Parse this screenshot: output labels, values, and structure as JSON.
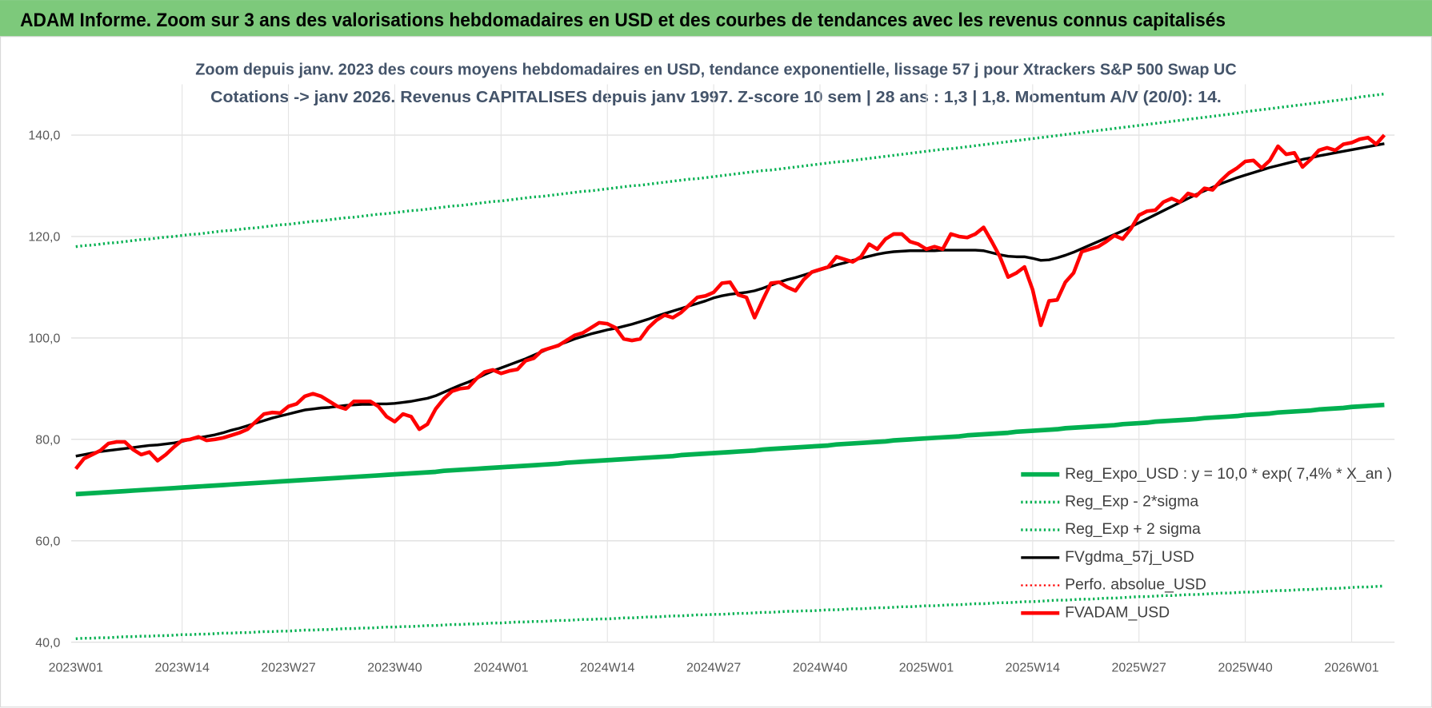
{
  "header": {
    "title": "ADAM Informe. Zoom sur 3 ans des valorisations hebdomadaires en USD et des courbes de tendances avec les revenus connus capitalisés"
  },
  "chart_data": {
    "type": "line",
    "title": "Zoom depuis janv. 2023 des cours moyens hebdomadaires en USD, tendance exponentielle, lissage 57 j pour Xtrackers S&P 500 Swap UC",
    "subtitle": "Cotations -> janv 2026. Revenus CAPITALISES depuis janv 1997. Z-score 10 sem | 28 ans : 1,3 | 1,8. Momentum A/V (20/0): 14.",
    "categories": [
      "2023W01",
      null,
      null,
      null,
      null,
      null,
      null,
      null,
      null,
      null,
      null,
      null,
      null,
      "2023W14",
      null,
      null,
      null,
      null,
      null,
      null,
      null,
      null,
      null,
      null,
      null,
      null,
      "2023W27",
      null,
      null,
      null,
      null,
      null,
      null,
      null,
      null,
      null,
      null,
      null,
      null,
      "2023W40",
      null,
      null,
      null,
      null,
      null,
      null,
      null,
      null,
      null,
      null,
      null,
      null,
      "2024W01",
      null,
      null,
      null,
      null,
      null,
      null,
      null,
      null,
      null,
      null,
      null,
      null,
      "2024W14",
      null,
      null,
      null,
      null,
      null,
      null,
      null,
      null,
      null,
      null,
      null,
      null,
      "2024W27",
      null,
      null,
      null,
      null,
      null,
      null,
      null,
      null,
      null,
      null,
      null,
      null,
      "2024W40",
      null,
      null,
      null,
      null,
      null,
      null,
      null,
      null,
      null,
      null,
      null,
      null,
      "2025W01",
      null,
      null,
      null,
      null,
      null,
      null,
      null,
      null,
      null,
      null,
      null,
      null,
      "2025W14",
      null,
      null,
      null,
      null,
      null,
      null,
      null,
      null,
      null,
      null,
      null,
      null,
      "2025W27",
      null,
      null,
      null,
      null,
      null,
      null,
      null,
      null,
      null,
      null,
      null,
      null,
      "2025W40",
      null,
      null,
      null,
      null,
      null,
      null,
      null,
      null,
      null,
      null,
      null,
      null,
      "2026W01",
      null,
      null,
      null,
      null
    ],
    "ylim": [
      40,
      150
    ],
    "yticks": [
      {
        "value": 40,
        "label": "40,0"
      },
      {
        "value": 60,
        "label": "60,0"
      },
      {
        "value": 80,
        "label": "80,0"
      },
      {
        "value": 100,
        "label": "100,0"
      },
      {
        "value": 120,
        "label": "120,0"
      },
      {
        "value": 140,
        "label": "140,0"
      }
    ],
    "grid": true,
    "legend": "lower right",
    "series": [
      {
        "name": "Reg_Expo_USD : y = 10,0 * exp( 7,4% *  X_an )",
        "color": "#00b050",
        "line_style": "solid",
        "line_width": 5,
        "values": [
          69.2,
          69.3,
          69.4,
          69.5,
          69.6,
          69.7,
          69.8,
          69.9,
          70.0,
          70.1,
          70.2,
          70.3,
          70.4,
          70.5,
          70.6,
          70.7,
          70.8,
          70.9,
          71.0,
          71.1,
          71.2,
          71.3,
          71.4,
          71.5,
          71.6,
          71.7,
          71.8,
          71.9,
          72.0,
          72.1,
          72.2,
          72.3,
          72.4,
          72.5,
          72.6,
          72.7,
          72.8,
          72.9,
          73.0,
          73.1,
          73.2,
          73.3,
          73.4,
          73.5,
          73.6,
          73.8,
          73.9,
          74.0,
          74.1,
          74.2,
          74.3,
          74.4,
          74.5,
          74.6,
          74.7,
          74.8,
          74.9,
          75.0,
          75.1,
          75.2,
          75.4,
          75.5,
          75.6,
          75.7,
          75.8,
          75.9,
          76.0,
          76.1,
          76.2,
          76.3,
          76.4,
          76.5,
          76.6,
          76.7,
          76.9,
          77.0,
          77.1,
          77.2,
          77.3,
          77.4,
          77.5,
          77.6,
          77.7,
          77.8,
          78.0,
          78.1,
          78.2,
          78.3,
          78.4,
          78.5,
          78.6,
          78.7,
          78.8,
          79.0,
          79.1,
          79.2,
          79.3,
          79.4,
          79.5,
          79.6,
          79.8,
          79.9,
          80.0,
          80.1,
          80.2,
          80.3,
          80.4,
          80.5,
          80.6,
          80.8,
          80.9,
          81.0,
          81.1,
          81.2,
          81.3,
          81.5,
          81.6,
          81.7,
          81.8,
          81.9,
          82.0,
          82.2,
          82.3,
          82.4,
          82.5,
          82.6,
          82.7,
          82.8,
          83.0,
          83.1,
          83.2,
          83.3,
          83.5,
          83.6,
          83.7,
          83.8,
          83.9,
          84.0,
          84.2,
          84.3,
          84.4,
          84.5,
          84.6,
          84.8,
          84.9,
          85.0,
          85.1,
          85.3,
          85.4,
          85.5,
          85.6,
          85.7,
          85.9,
          86.0,
          86.1,
          86.2,
          86.4,
          86.5,
          86.6,
          86.7,
          86.8
        ]
      },
      {
        "name": "Reg_Exp - 2*sigma",
        "color": "#00b050",
        "line_style": "dotted",
        "line_width": 3,
        "values": [
          40.7,
          40.8,
          40.8,
          40.9,
          40.9,
          41.0,
          41.1,
          41.1,
          41.2,
          41.2,
          41.3,
          41.3,
          41.4,
          41.5,
          41.5,
          41.6,
          41.6,
          41.7,
          41.8,
          41.8,
          41.9,
          41.9,
          42.0,
          42.1,
          42.1,
          42.2,
          42.2,
          42.3,
          42.4,
          42.4,
          42.5,
          42.5,
          42.6,
          42.7,
          42.7,
          42.8,
          42.8,
          42.9,
          43.0,
          43.0,
          43.1,
          43.1,
          43.2,
          43.3,
          43.3,
          43.4,
          43.5,
          43.5,
          43.6,
          43.6,
          43.7,
          43.8,
          43.8,
          43.9,
          44.0,
          44.0,
          44.1,
          44.1,
          44.2,
          44.3,
          44.3,
          44.4,
          44.5,
          44.5,
          44.6,
          44.6,
          44.7,
          44.8,
          44.8,
          44.9,
          45.0,
          45.0,
          45.1,
          45.2,
          45.2,
          45.3,
          45.4,
          45.4,
          45.5,
          45.5,
          45.6,
          45.7,
          45.7,
          45.8,
          45.9,
          45.9,
          46.0,
          46.1,
          46.1,
          46.2,
          46.2,
          46.3,
          46.4,
          46.4,
          46.5,
          46.6,
          46.6,
          46.7,
          46.8,
          46.8,
          46.9,
          47.0,
          47.0,
          47.1,
          47.2,
          47.2,
          47.3,
          47.4,
          47.4,
          47.5,
          47.6,
          47.6,
          47.7,
          47.8,
          47.8,
          47.9,
          48.0,
          48.0,
          48.1,
          48.2,
          48.3,
          48.3,
          48.4,
          48.5,
          48.5,
          48.6,
          48.7,
          48.7,
          48.8,
          48.9,
          49.0,
          49.0,
          49.1,
          49.2,
          49.2,
          49.3,
          49.4,
          49.4,
          49.5,
          49.6,
          49.7,
          49.7,
          49.8,
          49.9,
          49.9,
          50.0,
          50.1,
          50.2,
          50.2,
          50.3,
          50.4,
          50.4,
          50.5,
          50.6,
          50.6,
          50.7,
          50.8,
          50.9,
          50.9,
          51.0,
          51.1
        ]
      },
      {
        "name": "Reg_Exp + 2 sigma",
        "color": "#00b050",
        "line_style": "dotted",
        "line_width": 3,
        "values": [
          118.0,
          118.2,
          118.3,
          118.5,
          118.7,
          118.8,
          119.0,
          119.2,
          119.4,
          119.5,
          119.7,
          119.9,
          120.0,
          120.2,
          120.4,
          120.5,
          120.7,
          120.9,
          121.1,
          121.2,
          121.4,
          121.6,
          121.7,
          121.9,
          122.1,
          122.3,
          122.4,
          122.6,
          122.8,
          123.0,
          123.1,
          123.3,
          123.5,
          123.7,
          123.8,
          124.0,
          124.2,
          124.4,
          124.5,
          124.7,
          124.9,
          125.1,
          125.2,
          125.4,
          125.6,
          125.8,
          126.0,
          126.1,
          126.3,
          126.5,
          126.7,
          126.9,
          127.0,
          127.2,
          127.4,
          127.6,
          127.8,
          127.9,
          128.1,
          128.3,
          128.5,
          128.7,
          128.9,
          129.0,
          129.2,
          129.4,
          129.6,
          129.8,
          130.0,
          130.1,
          130.3,
          130.5,
          130.7,
          130.9,
          131.1,
          131.3,
          131.4,
          131.6,
          131.8,
          132.0,
          132.2,
          132.4,
          132.6,
          132.8,
          133.0,
          133.1,
          133.3,
          133.5,
          133.7,
          133.9,
          134.1,
          134.3,
          134.5,
          134.7,
          134.8,
          135.0,
          135.2,
          135.4,
          135.6,
          135.8,
          136.0,
          136.2,
          136.4,
          136.6,
          136.8,
          137.0,
          137.2,
          137.3,
          137.5,
          137.7,
          137.9,
          138.1,
          138.3,
          138.5,
          138.7,
          138.9,
          139.1,
          139.3,
          139.5,
          139.7,
          139.9,
          140.1,
          140.3,
          140.5,
          140.7,
          140.9,
          141.1,
          141.3,
          141.5,
          141.7,
          141.9,
          142.1,
          142.3,
          142.5,
          142.7,
          142.9,
          143.1,
          143.3,
          143.5,
          143.7,
          143.9,
          144.1,
          144.3,
          144.6,
          144.8,
          145.0,
          145.2,
          145.4,
          145.6,
          145.8,
          146.0,
          146.2,
          146.4,
          146.6,
          146.8,
          147.0,
          147.2,
          147.5,
          147.7,
          147.9,
          148.1
        ]
      },
      {
        "name": "FVgdma_57j_USD",
        "color": "#000000",
        "line_style": "solid",
        "line_width": 3,
        "values": [
          76.7,
          77.0,
          77.3,
          77.6,
          77.8,
          78.0,
          78.2,
          78.4,
          78.6,
          78.8,
          78.9,
          79.1,
          79.3,
          79.6,
          80.0,
          80.3,
          80.6,
          80.9,
          81.3,
          81.8,
          82.2,
          82.7,
          83.2,
          83.7,
          84.2,
          84.6,
          85.0,
          85.4,
          85.8,
          86.0,
          86.2,
          86.3,
          86.5,
          86.7,
          86.8,
          86.9,
          86.9,
          87.0,
          87.0,
          87.1,
          87.3,
          87.5,
          87.8,
          88.1,
          88.6,
          89.3,
          90.0,
          90.7,
          91.3,
          92.0,
          92.8,
          93.5,
          94.1,
          94.7,
          95.3,
          95.9,
          96.6,
          97.3,
          98.0,
          98.6,
          99.2,
          99.8,
          100.3,
          100.8,
          101.2,
          101.6,
          101.9,
          102.3,
          102.7,
          103.2,
          103.7,
          104.3,
          104.8,
          105.3,
          105.8,
          106.3,
          106.8,
          107.3,
          107.9,
          108.3,
          108.6,
          108.8,
          109.0,
          109.3,
          109.8,
          110.4,
          111.0,
          111.5,
          111.9,
          112.4,
          112.9,
          113.4,
          113.9,
          114.4,
          114.8,
          115.3,
          115.7,
          116.1,
          116.5,
          116.8,
          117.0,
          117.1,
          117.2,
          117.2,
          117.2,
          117.2,
          117.3,
          117.3,
          117.3,
          117.3,
          117.3,
          117.2,
          116.8,
          116.4,
          116.1,
          116.0,
          116.0,
          115.7,
          115.3,
          115.4,
          115.8,
          116.3,
          116.9,
          117.6,
          118.3,
          119.0,
          119.7,
          120.4,
          121.1,
          121.9,
          122.7,
          123.5,
          124.3,
          125.1,
          125.9,
          126.7,
          127.5,
          128.3,
          129.0,
          129.7,
          130.4,
          131.0,
          131.6,
          132.1,
          132.6,
          133.1,
          133.6,
          134.0,
          134.4,
          134.8,
          135.2,
          135.5,
          135.9,
          136.2,
          136.5,
          136.8,
          137.1,
          137.4,
          137.7,
          138.0,
          138.3
        ]
      },
      {
        "name": "Perfo. absolue_USD",
        "color": "#ff0000",
        "line_style": "dotted",
        "line_width": 2,
        "values": [
          null,
          null,
          null,
          null,
          null,
          null,
          null,
          null,
          null,
          null,
          null,
          null,
          null,
          null,
          null,
          null,
          null,
          null,
          null,
          null,
          null,
          null,
          null,
          null,
          null,
          null,
          null,
          null,
          null,
          null,
          null,
          null,
          null,
          null,
          null,
          null,
          null,
          null,
          null,
          null,
          null,
          null,
          null,
          null,
          null,
          null,
          null,
          null,
          null,
          null,
          null,
          null,
          null,
          null,
          null,
          null,
          null,
          null,
          null,
          null,
          null,
          null,
          null,
          null,
          null,
          null,
          null,
          null,
          null,
          null,
          null,
          null,
          null,
          null,
          null,
          null,
          null,
          null,
          null,
          null,
          null,
          null,
          null,
          null,
          null,
          null,
          null,
          null,
          null,
          null,
          null,
          null,
          null,
          null,
          null,
          null,
          null,
          null,
          null,
          null,
          null,
          null,
          null,
          null,
          null,
          null,
          null,
          null,
          null,
          null,
          null,
          null,
          null,
          null,
          null,
          null,
          null,
          null,
          null,
          null,
          null,
          null,
          null,
          null,
          null,
          null,
          null,
          null,
          null,
          null,
          null,
          null,
          null,
          null,
          null,
          null,
          null,
          null,
          null,
          null,
          null,
          null,
          null,
          null,
          null,
          null,
          null,
          null,
          null,
          null,
          null,
          null,
          null,
          null,
          null,
          null,
          null,
          null,
          null,
          null,
          null
        ]
      },
      {
        "name": "FVADAM_USD",
        "color": "#ff0000",
        "line_style": "solid",
        "line_width": 4,
        "values": [
          74.2,
          76.2,
          77.0,
          77.8,
          79.2,
          79.5,
          79.5,
          78.0,
          77.0,
          77.5,
          75.8,
          77.0,
          78.5,
          79.8,
          80.0,
          80.5,
          79.8,
          80.0,
          80.3,
          80.8,
          81.3,
          82.0,
          83.5,
          85.0,
          85.3,
          85.2,
          86.5,
          87.0,
          88.5,
          89.0,
          88.5,
          87.5,
          86.5,
          86.0,
          87.5,
          87.5,
          87.5,
          86.5,
          84.5,
          83.5,
          85.0,
          84.5,
          82.0,
          83.0,
          86.0,
          88.0,
          89.5,
          90.0,
          90.2,
          92.0,
          93.3,
          93.7,
          93.0,
          93.5,
          93.8,
          95.5,
          96.0,
          97.5,
          98.0,
          98.5,
          99.5,
          100.5,
          101.0,
          102.0,
          103.0,
          102.8,
          102.0,
          99.8,
          99.5,
          99.8,
          102.0,
          103.5,
          104.5,
          104.0,
          105.0,
          106.5,
          108.0,
          108.3,
          109.0,
          110.8,
          111.0,
          108.5,
          108.0,
          104.0,
          107.5,
          110.8,
          111.0,
          110.0,
          109.3,
          111.5,
          113.0,
          113.5,
          114.0,
          116.0,
          115.5,
          115.0,
          116.0,
          118.5,
          117.5,
          119.5,
          120.5,
          120.5,
          119.0,
          118.5,
          117.5,
          118.0,
          117.5,
          120.5,
          120.0,
          119.8,
          120.5,
          121.8,
          119.0,
          116.0,
          112.0,
          112.8,
          114.0,
          109.5,
          102.5,
          107.3,
          107.5,
          111.0,
          112.8,
          117.0,
          117.5,
          118.0,
          119.0,
          120.2,
          119.5,
          121.5,
          124.2,
          125.0,
          125.2,
          126.8,
          127.5,
          126.8,
          128.5,
          128.0,
          129.5,
          129.2,
          131.0,
          132.5,
          133.5,
          134.8,
          135.0,
          133.5,
          135.0,
          137.8,
          136.2,
          136.5,
          133.7,
          135.2,
          137.0,
          137.5,
          137.0,
          138.2,
          138.5,
          139.2,
          139.5,
          138.2,
          140.0
        ]
      }
    ]
  }
}
